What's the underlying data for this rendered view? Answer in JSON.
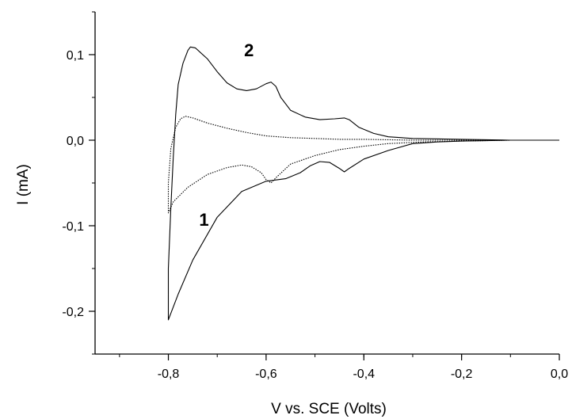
{
  "chart_data": {
    "type": "line",
    "xlabel": "V vs. SCE (Volts)",
    "ylabel": "I (mA)",
    "xlim": [
      -0.95,
      0.0
    ],
    "ylim": [
      -0.25,
      0.15
    ],
    "x_ticks": [
      -0.8,
      -0.6,
      -0.4,
      -0.2,
      0.0
    ],
    "x_tick_labels": [
      "-0,8",
      "-0,6",
      "-0,4",
      "-0,2",
      "0,0"
    ],
    "y_ticks": [
      -0.2,
      -0.1,
      0.0,
      0.1
    ],
    "y_tick_labels": [
      "-0,2",
      "-0,1",
      "0,0",
      "0,1"
    ],
    "grid": false,
    "series": [
      {
        "style": "solid",
        "color": "#000000",
        "points": [
          [
            0.0,
            0.0
          ],
          [
            -0.1,
            0.0
          ],
          [
            -0.2,
            -0.001
          ],
          [
            -0.25,
            -0.002
          ],
          [
            -0.3,
            -0.004
          ],
          [
            -0.35,
            -0.012
          ],
          [
            -0.4,
            -0.022
          ],
          [
            -0.43,
            -0.033
          ],
          [
            -0.44,
            -0.037
          ],
          [
            -0.45,
            -0.033
          ],
          [
            -0.47,
            -0.026
          ],
          [
            -0.49,
            -0.025
          ],
          [
            -0.51,
            -0.03
          ],
          [
            -0.53,
            -0.038
          ],
          [
            -0.56,
            -0.045
          ],
          [
            -0.6,
            -0.048
          ],
          [
            -0.65,
            -0.06
          ],
          [
            -0.7,
            -0.09
          ],
          [
            -0.75,
            -0.14
          ],
          [
            -0.78,
            -0.18
          ],
          [
            -0.8,
            -0.21
          ],
          [
            -0.8,
            -0.15
          ],
          [
            -0.795,
            -0.08
          ],
          [
            -0.79,
            -0.02
          ],
          [
            -0.785,
            0.03
          ],
          [
            -0.78,
            0.065
          ],
          [
            -0.77,
            0.09
          ],
          [
            -0.76,
            0.105
          ],
          [
            -0.755,
            0.109
          ],
          [
            -0.745,
            0.108
          ],
          [
            -0.72,
            0.095
          ],
          [
            -0.7,
            0.08
          ],
          [
            -0.68,
            0.067
          ],
          [
            -0.66,
            0.06
          ],
          [
            -0.64,
            0.058
          ],
          [
            -0.62,
            0.06
          ],
          [
            -0.6,
            0.066
          ],
          [
            -0.59,
            0.068
          ],
          [
            -0.58,
            0.063
          ],
          [
            -0.57,
            0.05
          ],
          [
            -0.55,
            0.035
          ],
          [
            -0.52,
            0.027
          ],
          [
            -0.49,
            0.024
          ],
          [
            -0.46,
            0.025
          ],
          [
            -0.44,
            0.026
          ],
          [
            -0.43,
            0.024
          ],
          [
            -0.41,
            0.015
          ],
          [
            -0.38,
            0.008
          ],
          [
            -0.35,
            0.004
          ],
          [
            -0.3,
            0.002
          ],
          [
            -0.2,
            0.001
          ],
          [
            -0.1,
            0.0
          ],
          [
            0.0,
            0.0
          ]
        ]
      },
      {
        "style": "dotted",
        "color": "#000000",
        "points": [
          [
            0.0,
            0.0
          ],
          [
            -0.1,
            0.0
          ],
          [
            -0.2,
            -0.001
          ],
          [
            -0.28,
            -0.002
          ],
          [
            -0.35,
            -0.004
          ],
          [
            -0.4,
            -0.007
          ],
          [
            -0.45,
            -0.011
          ],
          [
            -0.5,
            -0.018
          ],
          [
            -0.55,
            -0.028
          ],
          [
            -0.58,
            -0.044
          ],
          [
            -0.59,
            -0.05
          ],
          [
            -0.6,
            -0.046
          ],
          [
            -0.61,
            -0.038
          ],
          [
            -0.63,
            -0.031
          ],
          [
            -0.65,
            -0.029
          ],
          [
            -0.68,
            -0.032
          ],
          [
            -0.72,
            -0.04
          ],
          [
            -0.76,
            -0.055
          ],
          [
            -0.79,
            -0.072
          ],
          [
            -0.8,
            -0.085
          ],
          [
            -0.8,
            -0.05
          ],
          [
            -0.795,
            -0.01
          ],
          [
            -0.785,
            0.015
          ],
          [
            -0.775,
            0.025
          ],
          [
            -0.765,
            0.028
          ],
          [
            -0.75,
            0.026
          ],
          [
            -0.72,
            0.02
          ],
          [
            -0.68,
            0.014
          ],
          [
            -0.64,
            0.009
          ],
          [
            -0.6,
            0.005
          ],
          [
            -0.55,
            0.003
          ],
          [
            -0.5,
            0.002
          ],
          [
            -0.45,
            0.001
          ],
          [
            -0.4,
            0.001
          ],
          [
            -0.3,
            0.0
          ],
          [
            -0.2,
            0.0
          ],
          [
            -0.1,
            0.0
          ],
          [
            0.0,
            0.0
          ]
        ]
      }
    ],
    "annotations": [
      {
        "text": "2",
        "x": -0.635,
        "y": 0.098
      },
      {
        "text": "1",
        "x": -0.727,
        "y": -0.1
      }
    ]
  }
}
